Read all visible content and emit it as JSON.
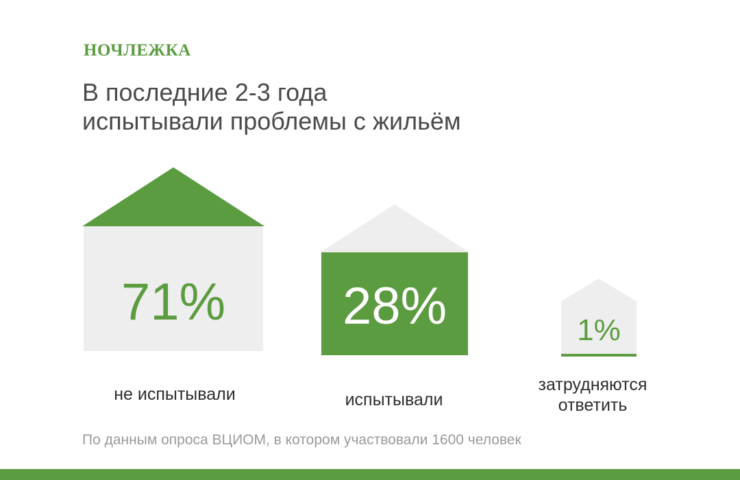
{
  "brand": {
    "logo_text": "НОЧЛЕЖКА",
    "accent_color": "#5c9c40",
    "neutral_color": "#eeeeee"
  },
  "chart_data": {
    "type": "bar",
    "title_lines": [
      "В последние 2-3 года",
      "испытывали проблемы с жильём"
    ],
    "unit": "%",
    "categories": [
      {
        "label_lines": [
          "не испытывали"
        ],
        "value": 71,
        "value_label": "71%"
      },
      {
        "label_lines": [
          "испытывали"
        ],
        "value": 28,
        "value_label": "28%"
      },
      {
        "label_lines": [
          "затрудняются",
          "ответить"
        ],
        "value": 1,
        "value_label": "1%"
      }
    ]
  },
  "source_note": "По данным опроса ВЦИОМ, в котором участвовали 1600 человек"
}
